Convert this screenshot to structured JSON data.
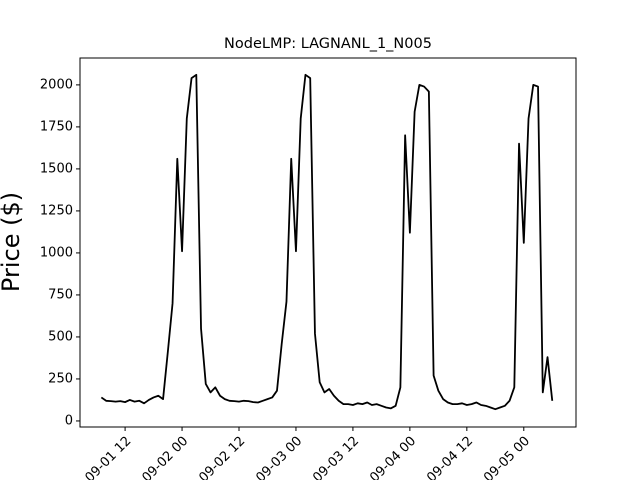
{
  "chart_data": {
    "type": "line",
    "title": "NodeLMP: LAGNANL_1_N005",
    "y_label": "Price ($)",
    "x": [
      "09-01 07",
      "09-01 08",
      "09-01 09",
      "09-01 10",
      "09-01 11",
      "09-01 12",
      "09-01 13",
      "09-01 14",
      "09-01 15",
      "09-01 16",
      "09-01 17",
      "09-01 18",
      "09-01 19",
      "09-01 20",
      "09-01 21",
      "09-01 22",
      "09-01 23",
      "09-02 00",
      "09-02 01",
      "09-02 02",
      "09-02 03",
      "09-02 04",
      "09-02 05",
      "09-02 06",
      "09-02 07",
      "09-02 08",
      "09-02 09",
      "09-02 10",
      "09-02 11",
      "09-02 12",
      "09-02 13",
      "09-02 14",
      "09-02 15",
      "09-02 16",
      "09-02 17",
      "09-02 18",
      "09-02 19",
      "09-02 20",
      "09-02 21",
      "09-02 22",
      "09-02 23",
      "09-03 00",
      "09-03 01",
      "09-03 02",
      "09-03 03",
      "09-03 04",
      "09-03 05",
      "09-03 06",
      "09-03 07",
      "09-03 08",
      "09-03 09",
      "09-03 10",
      "09-03 11",
      "09-03 12",
      "09-03 13",
      "09-03 14",
      "09-03 15",
      "09-03 16",
      "09-03 17",
      "09-03 18",
      "09-03 19",
      "09-03 20",
      "09-03 21",
      "09-03 22",
      "09-03 23",
      "09-04 00",
      "09-04 01",
      "09-04 02",
      "09-04 03",
      "09-04 04",
      "09-04 05",
      "09-04 06",
      "09-04 07",
      "09-04 08",
      "09-04 09",
      "09-04 10",
      "09-04 11",
      "09-04 12",
      "09-04 13",
      "09-04 14",
      "09-04 15",
      "09-04 16",
      "09-04 17",
      "09-04 18",
      "09-04 19",
      "09-04 20",
      "09-04 21",
      "09-04 22",
      "09-04 23",
      "09-05 00",
      "09-05 01",
      "09-05 02",
      "09-05 03",
      "09-05 04",
      "09-05 05",
      "09-05 06"
    ],
    "values": [
      140,
      120,
      118,
      115,
      118,
      112,
      125,
      115,
      120,
      105,
      125,
      140,
      150,
      130,
      410,
      700,
      1560,
      1010,
      1800,
      2040,
      2060,
      550,
      220,
      170,
      200,
      150,
      130,
      120,
      118,
      115,
      120,
      118,
      112,
      110,
      120,
      130,
      140,
      180,
      460,
      710,
      1560,
      1010,
      1800,
      2060,
      2040,
      520,
      230,
      170,
      190,
      150,
      120,
      100,
      100,
      95,
      105,
      100,
      110,
      95,
      100,
      90,
      80,
      75,
      90,
      200,
      1700,
      1120,
      1840,
      2000,
      1990,
      1960,
      270,
      180,
      130,
      110,
      100,
      100,
      105,
      95,
      100,
      110,
      95,
      90,
      80,
      70,
      80,
      90,
      120,
      200,
      1650,
      1060,
      1800,
      2000,
      1990,
      170,
      380,
      120
    ],
    "color": "#000000",
    "xlim": [
      "09-01 02:30",
      "09-05 11:00"
    ],
    "xticks": [
      "09-01 12",
      "09-02 00",
      "09-02 12",
      "09-03 00",
      "09-03 12",
      "09-04 00",
      "09-04 12",
      "09-05 00"
    ],
    "ylim": [
      -36,
      2160
    ],
    "yticks": [
      0,
      250,
      500,
      750,
      1000,
      1250,
      1500,
      1750,
      2000
    ]
  }
}
